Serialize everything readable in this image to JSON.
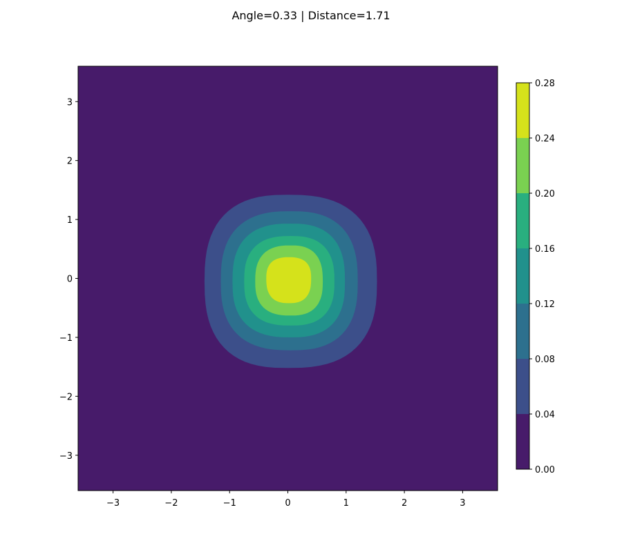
{
  "chart_data": {
    "type": "contourf",
    "title": "Angle=0.33 | Distance=1.71",
    "xlabel": "",
    "ylabel": "",
    "xlim": [
      -3.6,
      3.6
    ],
    "ylim": [
      -3.6,
      3.6
    ],
    "x_ticks": [
      "−3",
      "−2",
      "−1",
      "0",
      "1",
      "2",
      "3"
    ],
    "y_ticks": [
      "3",
      "2",
      "1",
      "0",
      "−1",
      "−2",
      "−3"
    ],
    "colorbar": {
      "ticks": [
        "0.28",
        "0.24",
        "0.20",
        "0.16",
        "0.12",
        "0.08",
        "0.04",
        "0.00"
      ],
      "levels": [
        0.0,
        0.04,
        0.08,
        0.12,
        0.16,
        0.2,
        0.24,
        0.28
      ],
      "colors": [
        "#471b6a",
        "#3c4f8a",
        "#2d708e",
        "#21918c",
        "#29af7f",
        "#7ad151",
        "#d5e21b"
      ]
    },
    "contour_regions": [
      {
        "level_min": 0.04,
        "center": [
          0.0,
          -0.05
        ],
        "x_extent": [
          -1.43,
          1.53
        ],
        "y_extent": [
          -1.52,
          1.42
        ]
      },
      {
        "level_min": 0.08,
        "center": [
          0.05,
          -0.05
        ],
        "x_extent": [
          -1.15,
          1.2
        ],
        "y_extent": [
          -1.22,
          1.14
        ]
      },
      {
        "level_min": 0.12,
        "center": [
          0.05,
          -0.05
        ],
        "x_extent": [
          -0.95,
          0.98
        ],
        "y_extent": [
          -1.0,
          0.93
        ]
      },
      {
        "level_min": 0.16,
        "center": [
          0.05,
          -0.05
        ],
        "x_extent": [
          -0.75,
          0.8
        ],
        "y_extent": [
          -0.8,
          0.72
        ]
      },
      {
        "level_min": 0.2,
        "center": [
          0.05,
          -0.05
        ],
        "x_extent": [
          -0.56,
          0.6
        ],
        "y_extent": [
          -0.63,
          0.56
        ]
      },
      {
        "level_min": 0.24,
        "center": [
          0.02,
          0.0
        ],
        "x_extent": [
          -0.37,
          0.4
        ],
        "y_extent": [
          -0.42,
          0.36
        ]
      }
    ]
  }
}
